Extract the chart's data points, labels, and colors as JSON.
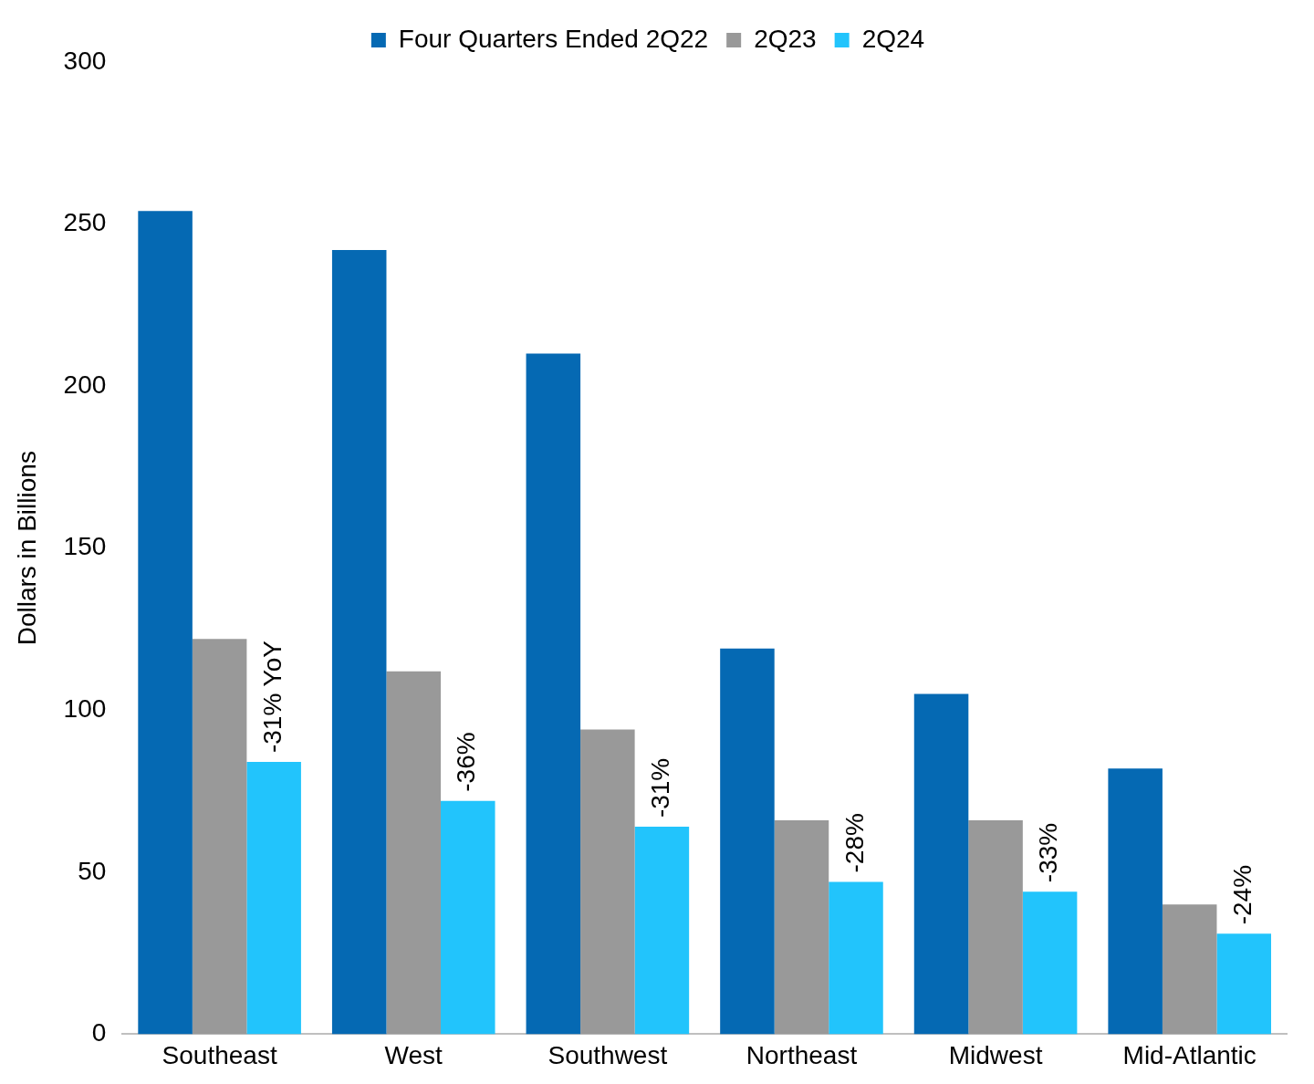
{
  "chart_data": {
    "type": "bar",
    "ylabel": "Dollars in Billions",
    "categories": [
      "Southeast",
      "West",
      "Southwest",
      "Northeast",
      "Midwest",
      "Mid-Atlantic"
    ],
    "series": [
      {
        "name": "Four Quarters Ended 2Q22",
        "color": "#0569b3",
        "values": [
          254,
          242,
          210,
          119,
          105,
          82
        ]
      },
      {
        "name": "2Q23",
        "color": "#999999",
        "values": [
          122,
          112,
          94,
          66,
          66,
          40
        ]
      },
      {
        "name": "2Q24",
        "color": "#22c4fc",
        "values": [
          84,
          72,
          64,
          47,
          44,
          31
        ]
      }
    ],
    "annotations": [
      "-31% YoY",
      "-36%",
      "-31%",
      "-28%",
      "-33%",
      "-24%"
    ],
    "ylim": [
      0,
      300
    ],
    "yticks": [
      0,
      50,
      100,
      150,
      200,
      250,
      300
    ],
    "grid": false,
    "legend": "top"
  }
}
